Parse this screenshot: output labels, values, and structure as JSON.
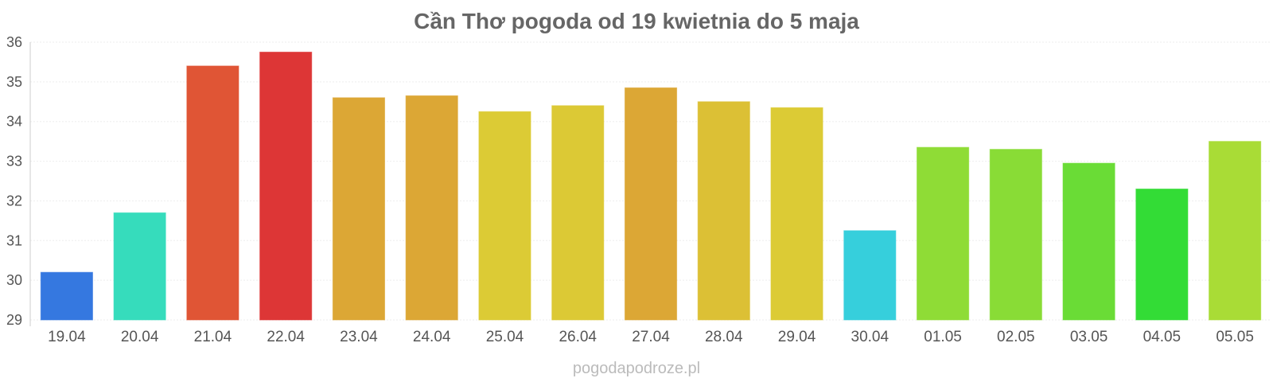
{
  "chart_data": {
    "type": "bar",
    "title": "Cần Thơ pogoda od 19 kwietnia do 5 maja",
    "xlabel": "",
    "ylabel": "",
    "ylim": [
      29,
      36
    ],
    "yticks": [
      "29",
      "30",
      "31",
      "32",
      "33",
      "34",
      "35",
      "36"
    ],
    "grid": true,
    "categories": [
      "19.04",
      "20.04",
      "21.04",
      "22.04",
      "23.04",
      "24.04",
      "25.04",
      "26.04",
      "27.04",
      "28.04",
      "29.04",
      "30.04",
      "01.05",
      "02.05",
      "03.05",
      "04.05",
      "05.05"
    ],
    "values": [
      30.2,
      31.7,
      35.4,
      35.75,
      34.6,
      34.65,
      34.25,
      34.4,
      34.85,
      34.5,
      34.35,
      31.25,
      33.35,
      33.3,
      32.95,
      32.3,
      33.5
    ],
    "colors": [
      "#3578e0",
      "#36dcbc",
      "#e05535",
      "#dd3636",
      "#dca735",
      "#dca735",
      "#dccb35",
      "#dcc935",
      "#dca735",
      "#dcc035",
      "#dccb35",
      "#36cfdc",
      "#8fdc36",
      "#89dc36",
      "#6adc36",
      "#33dc36",
      "#a9dc36"
    ]
  },
  "watermark": "pogodapodroze.pl"
}
